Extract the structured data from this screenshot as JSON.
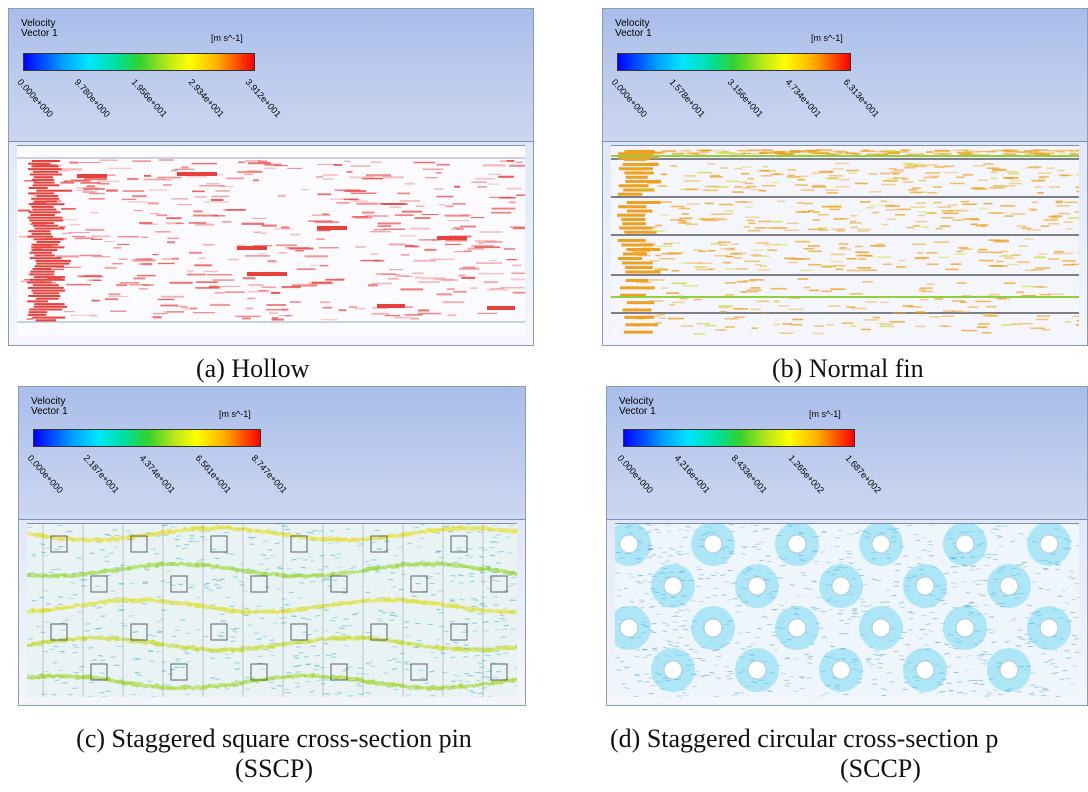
{
  "panels": [
    {
      "id": "a",
      "variable_line1": "Velocity",
      "variable_line2": "Vector 1",
      "unit": "[m s^-1]",
      "ticks": [
        "0.000e+000",
        "9.780e+000",
        "1.956e+001",
        "2.934e+001",
        "3.912e+001"
      ],
      "caption": "(a) Hollow",
      "flow_color": "#e8403a"
    },
    {
      "id": "b",
      "variable_line1": "Velocity",
      "variable_line2": "Vector 1",
      "unit": "[m s^-1]",
      "ticks": [
        "0.000e+000",
        "1.578e+001",
        "3.156e+001",
        "4.734e+001",
        "6.313e+001"
      ],
      "caption": "(b) Normal fin",
      "flow_color": "#f0a020"
    },
    {
      "id": "c",
      "variable_line1": "Velocity",
      "variable_line2": "Vector 1",
      "unit": "[m s^-1]",
      "ticks": [
        "0.000e+000",
        "2.187e+001",
        "4.374e+001",
        "6.561e+001",
        "8.747e+001"
      ],
      "caption_line1": "(c) Staggered square cross-section pin",
      "caption_line2": "(SSCP)",
      "flow_color": "#b8d820"
    },
    {
      "id": "d",
      "variable_line1": "Velocity",
      "variable_line2": "Vector 1",
      "unit": "[m s^-1]",
      "ticks": [
        "0.000e+000",
        "4.216e+001",
        "8.433e+001",
        "1.265e+002",
        "1.687e+002"
      ],
      "caption_line1": "(d) Staggered circular cross-section p",
      "caption_line2": "(SCCP)",
      "flow_color": "#30c8f0"
    }
  ]
}
